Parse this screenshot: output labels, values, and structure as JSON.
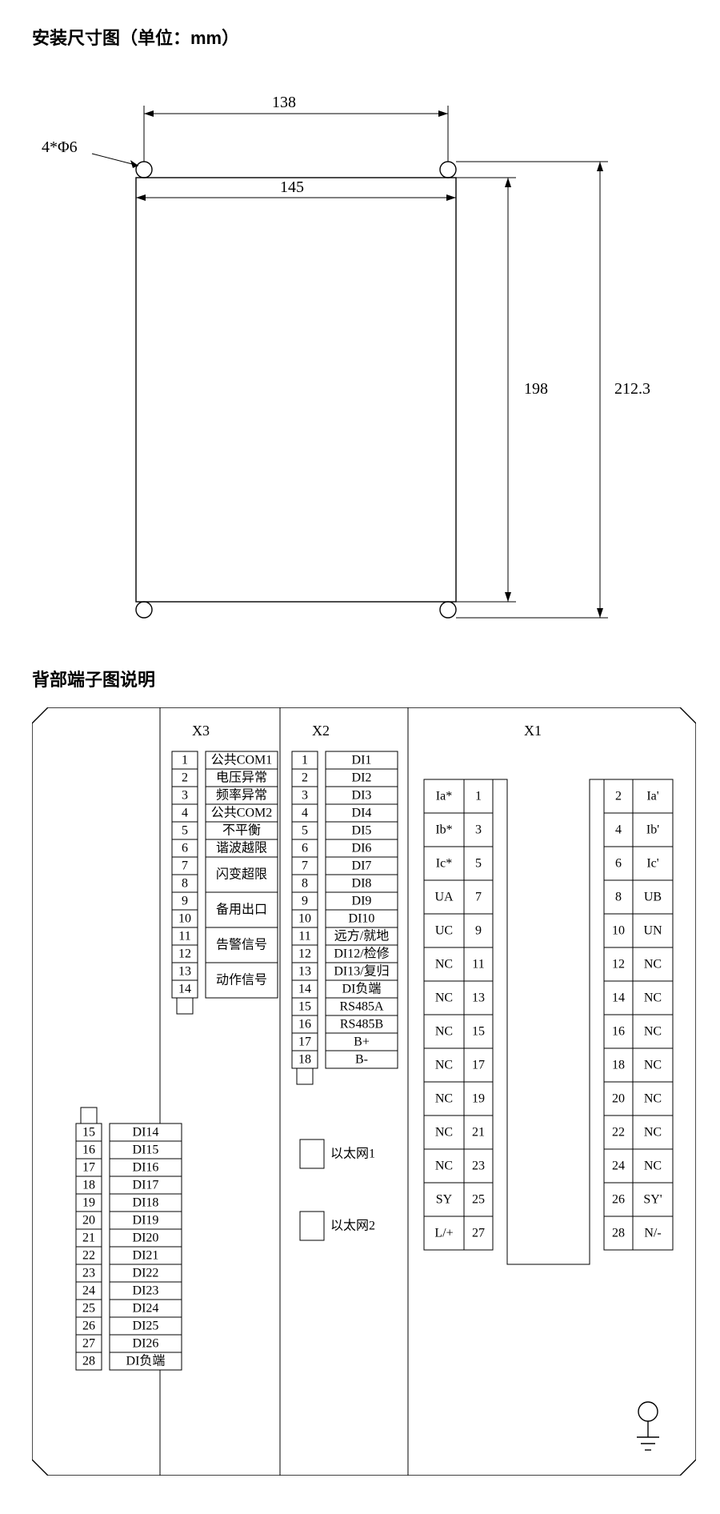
{
  "section1_title": "安装尺寸图（单位：mm）",
  "section2_title": "背部端子图说明",
  "dimensions": {
    "hole_label": "4*Φ6",
    "width_outer": "138",
    "width_inner": "145",
    "height_inner": "198",
    "height_outer": "212.3"
  },
  "terminal": {
    "blocks": {
      "x1": "X1",
      "x2": "X2",
      "x3": "X3"
    },
    "ethernet1": "以太网1",
    "ethernet2": "以太网2",
    "x3a_rows": 14,
    "x3a_labels": [
      "公共COM1",
      "电压异常",
      "频率异常",
      "公共COM2",
      "不平衡",
      "谐波越限",
      "闪变超限",
      "闪变超限",
      "备用出口",
      "备用出口",
      "告警信号",
      "告警信号",
      "动作信号",
      "动作信号"
    ],
    "x3a_label_spans": [
      [
        1,
        1
      ],
      [
        2,
        1
      ],
      [
        3,
        1
      ],
      [
        4,
        1
      ],
      [
        5,
        1
      ],
      [
        6,
        1
      ],
      [
        7,
        2
      ],
      [
        9,
        2
      ],
      [
        11,
        2
      ],
      [
        13,
        2
      ]
    ],
    "x3a_label_text": [
      "公共COM1",
      "电压异常",
      "频率异常",
      "公共COM2",
      "不平衡",
      "谐波越限",
      "闪变超限",
      "备用出口",
      "告警信号",
      "动作信号"
    ],
    "x3b_start": 15,
    "x3b_rows": 14,
    "x3b_labels": [
      "DI14",
      "DI15",
      "DI16",
      "DI17",
      "DI18",
      "DI19",
      "DI20",
      "DI21",
      "DI22",
      "DI23",
      "DI24",
      "DI25",
      "DI26",
      "DI负端"
    ],
    "x2_rows": 18,
    "x2_labels": [
      "DI1",
      "DI2",
      "DI3",
      "DI4",
      "DI5",
      "DI6",
      "DI7",
      "DI8",
      "DI9",
      "DI10",
      "远方/就地",
      "DI12/检修",
      "DI13/复归",
      "DI负端",
      "RS485A",
      "RS485B",
      "B+",
      "B-"
    ],
    "x1_left": [
      {
        "label": "Ia*",
        "n": "1"
      },
      {
        "label": "Ib*",
        "n": "3"
      },
      {
        "label": "Ic*",
        "n": "5"
      },
      {
        "label": "UA",
        "n": "7"
      },
      {
        "label": "UC",
        "n": "9"
      },
      {
        "label": "NC",
        "n": "11"
      },
      {
        "label": "NC",
        "n": "13"
      },
      {
        "label": "NC",
        "n": "15"
      },
      {
        "label": "NC",
        "n": "17"
      },
      {
        "label": "NC",
        "n": "19"
      },
      {
        "label": "NC",
        "n": "21"
      },
      {
        "label": "NC",
        "n": "23"
      },
      {
        "label": "SY",
        "n": "25"
      },
      {
        "label": "L/+",
        "n": "27"
      }
    ],
    "x1_right": [
      {
        "n": "2",
        "label": "Ia'"
      },
      {
        "n": "4",
        "label": "Ib'"
      },
      {
        "n": "6",
        "label": "Ic'"
      },
      {
        "n": "8",
        "label": "UB"
      },
      {
        "n": "10",
        "label": "UN"
      },
      {
        "n": "12",
        "label": "NC"
      },
      {
        "n": "14",
        "label": "NC"
      },
      {
        "n": "16",
        "label": "NC"
      },
      {
        "n": "18",
        "label": "NC"
      },
      {
        "n": "20",
        "label": "NC"
      },
      {
        "n": "22",
        "label": "NC"
      },
      {
        "n": "24",
        "label": "NC"
      },
      {
        "n": "26",
        "label": "SY'"
      },
      {
        "n": "28",
        "label": "N/-"
      }
    ]
  },
  "style": {
    "row_h_small": 22,
    "row_h_big": 42,
    "num_col_w": 32,
    "label_col_w": 90,
    "x1_label_w": 50,
    "x1_num_w": 36,
    "stroke_color": "#000000",
    "bg_color": "#ffffff"
  }
}
